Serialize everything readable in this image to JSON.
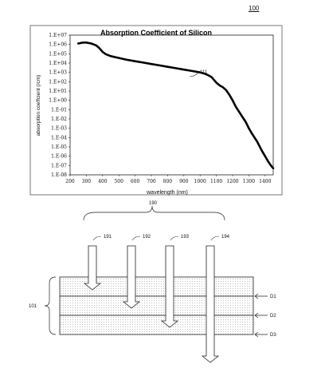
{
  "figure_number": "100",
  "chart_data": {
    "type": "line",
    "title": "Absorption Coefficient of Silicon",
    "xlabel": "wavelength (nm)",
    "ylabel": "absorption coeffcient (/cm)",
    "x_ticks": [
      "200",
      "300",
      "400",
      "500",
      "600",
      "700",
      "800",
      "900",
      "1000",
      "1100",
      "1200",
      "1300",
      "1400"
    ],
    "y_ticks": [
      "1.E-08",
      "1.E-07",
      "1.E-06",
      "1.E-05",
      "1.E-04",
      "1.E-03",
      "1.E-02",
      "1.E-01",
      "1.E+00",
      "1.E+01",
      "1.E+02",
      "1.E+03",
      "1.E+04",
      "1.E+05",
      "1.E+06",
      "1.E+07"
    ],
    "xlim": [
      200,
      1450
    ],
    "ylim_log10": [
      -8,
      7
    ],
    "log_y": true,
    "grid": false,
    "curve_label": "111",
    "series": [
      {
        "x": [
          250,
          280,
          300,
          330,
          360,
          380,
          400,
          420,
          450,
          500,
          550,
          600,
          650,
          700,
          750,
          800,
          850,
          900,
          950,
          1000,
          1030,
          1050,
          1070,
          1080,
          1090,
          1100,
          1120,
          1140,
          1160,
          1180,
          1200,
          1220,
          1250,
          1280,
          1300,
          1320,
          1350,
          1380,
          1400,
          1420,
          1440,
          1450
        ],
        "y_log10": [
          6.1,
          6.2,
          6.2,
          6.1,
          5.9,
          5.6,
          5.2,
          4.95,
          4.75,
          4.55,
          4.35,
          4.2,
          4.05,
          3.9,
          3.75,
          3.6,
          3.45,
          3.3,
          3.15,
          3.0,
          2.85,
          2.7,
          2.5,
          2.3,
          2.1,
          1.9,
          1.6,
          1.4,
          1.1,
          0.6,
          0.0,
          -0.7,
          -1.5,
          -2.3,
          -3.0,
          -3.6,
          -4.4,
          -5.4,
          -6.0,
          -6.6,
          -7.1,
          -7.3
        ]
      }
    ]
  },
  "diagram": {
    "group_label": "190",
    "arrow_labels": [
      "191",
      "192",
      "193",
      "194"
    ],
    "stack_label": "101",
    "depth_labels": [
      "D1",
      "D2",
      "D3"
    ]
  }
}
